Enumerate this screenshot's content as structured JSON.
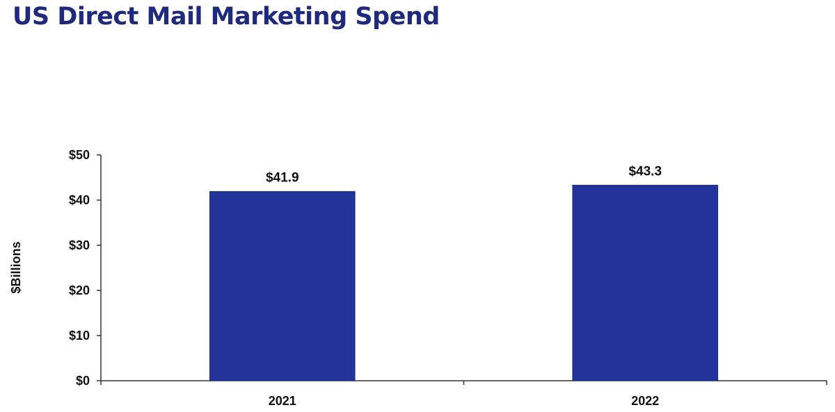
{
  "title": "US Direct Mail Marketing Spend",
  "colors": {
    "title": "#1f2a7c",
    "bar": "#223399",
    "axis": "#333333",
    "text": "#111111"
  },
  "chart_data": {
    "type": "bar",
    "title": "US Direct Mail Marketing Spend",
    "categories": [
      "2021",
      "2022"
    ],
    "values": [
      41.9,
      43.3
    ],
    "data_labels": [
      "$41.9",
      "$43.3"
    ],
    "xlabel": "",
    "ylabel": "$Billions",
    "ylim": [
      0,
      50
    ],
    "yticks": [
      0,
      10,
      20,
      30,
      40,
      50
    ],
    "ytick_labels": [
      "$0",
      "$10",
      "$20",
      "$30",
      "$40",
      "$50"
    ],
    "grid": false,
    "legend": "none"
  }
}
